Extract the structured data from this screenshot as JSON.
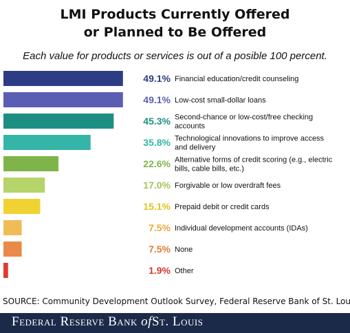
{
  "header": {
    "title_line1": "LMI Products Currently Offered",
    "title_line2": "or Planned to Be Offered",
    "subtitle": "Each value for products or services is out of a posible 100 percent."
  },
  "chart_data": {
    "type": "bar",
    "orientation": "horizontal",
    "title": "LMI Products Currently Offered or Planned to Be Offered",
    "categories": [
      [
        "Financial education/credit counseling"
      ],
      [
        "Low-cost small-dollar loans"
      ],
      [
        "Second-chance or low-cost/free checking",
        "accounts"
      ],
      [
        "Technological innovations to improve access",
        "and delivery"
      ],
      [
        "Alternative forms of credit scoring (e.g., electric",
        "bills, cable bills, etc.)"
      ],
      [
        "Forgivable or low overdraft fees"
      ],
      [
        "Prepaid debit or credit cards"
      ],
      [
        "Individual development accounts (IDAs)"
      ],
      [
        "None"
      ],
      [
        "Other"
      ]
    ],
    "values": [
      49.1,
      49.1,
      45.3,
      35.8,
      22.6,
      17.0,
      15.1,
      7.5,
      7.5,
      1.9
    ],
    "value_labels": [
      "49.1%",
      "49.1%",
      "45.3%",
      "35.8%",
      "22.6%",
      "17.0%",
      "15.1%",
      "7.5%",
      "7.5%",
      "1.9%"
    ],
    "bar_colors": [
      "#2d3d85",
      "#5a5fb3",
      "#1c8f82",
      "#35b5a7",
      "#7fb44a",
      "#b5d46a",
      "#f1d233",
      "#f0bc57",
      "#ea8a48",
      "#de3c2c"
    ],
    "label_colors": [
      "#2d3d85",
      "#5a5fb3",
      "#1c8f82",
      "#35b5a7",
      "#7fb44a",
      "#a4c35a",
      "#e4c21f",
      "#e8a83e",
      "#e07c35",
      "#d63a2a"
    ],
    "xlim": [
      0,
      100
    ],
    "grid": false,
    "legend": "none"
  },
  "source": "SOURCE: Community Development Outlook Survey, Federal Reserve Bank of St. Louis",
  "footer": {
    "brand": "Federal Reserve Bank of St. Louis"
  }
}
